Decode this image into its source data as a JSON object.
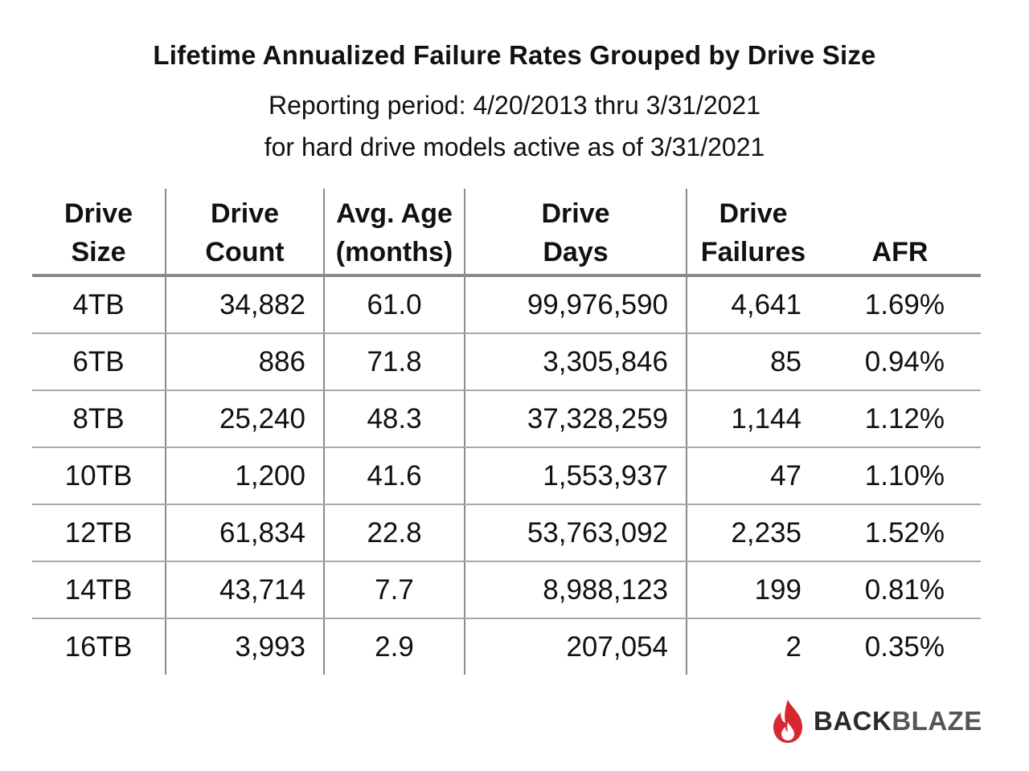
{
  "chart_data": {
    "type": "table",
    "title": "Lifetime Annualized Failure Rates Grouped by Drive Size",
    "subtitle_lines": [
      "Reporting period: 4/20/2013 thru 3/31/2021",
      "for hard drive models active as of 3/31/2021"
    ],
    "columns": [
      [
        "Drive",
        "Size"
      ],
      [
        "Drive",
        "Count"
      ],
      [
        "Avg. Age",
        "(months)"
      ],
      [
        "Drive",
        "Days"
      ],
      [
        "Drive",
        "Failures"
      ],
      [
        "",
        "AFR"
      ]
    ],
    "rows": [
      {
        "size": "4TB",
        "count": "34,882",
        "age": "61.0",
        "days": "99,976,590",
        "failures": "4,641",
        "afr": "1.69%"
      },
      {
        "size": "6TB",
        "count": "886",
        "age": "71.8",
        "days": "3,305,846",
        "failures": "85",
        "afr": "0.94%"
      },
      {
        "size": "8TB",
        "count": "25,240",
        "age": "48.3",
        "days": "37,328,259",
        "failures": "1,144",
        "afr": "1.12%"
      },
      {
        "size": "10TB",
        "count": "1,200",
        "age": "41.6",
        "days": "1,553,937",
        "failures": "47",
        "afr": "1.10%"
      },
      {
        "size": "12TB",
        "count": "61,834",
        "age": "22.8",
        "days": "53,763,092",
        "failures": "2,235",
        "afr": "1.52%"
      },
      {
        "size": "14TB",
        "count": "43,714",
        "age": "7.7",
        "days": "8,988,123",
        "failures": "199",
        "afr": "0.81%"
      },
      {
        "size": "16TB",
        "count": "3,993",
        "age": "2.9",
        "days": "207,054",
        "failures": "2",
        "afr": "0.35%"
      }
    ]
  },
  "logo": {
    "text_back": "BACK",
    "text_blaze": "BLAZE",
    "icon": "flame-icon",
    "flame_color": "#d7282f"
  }
}
